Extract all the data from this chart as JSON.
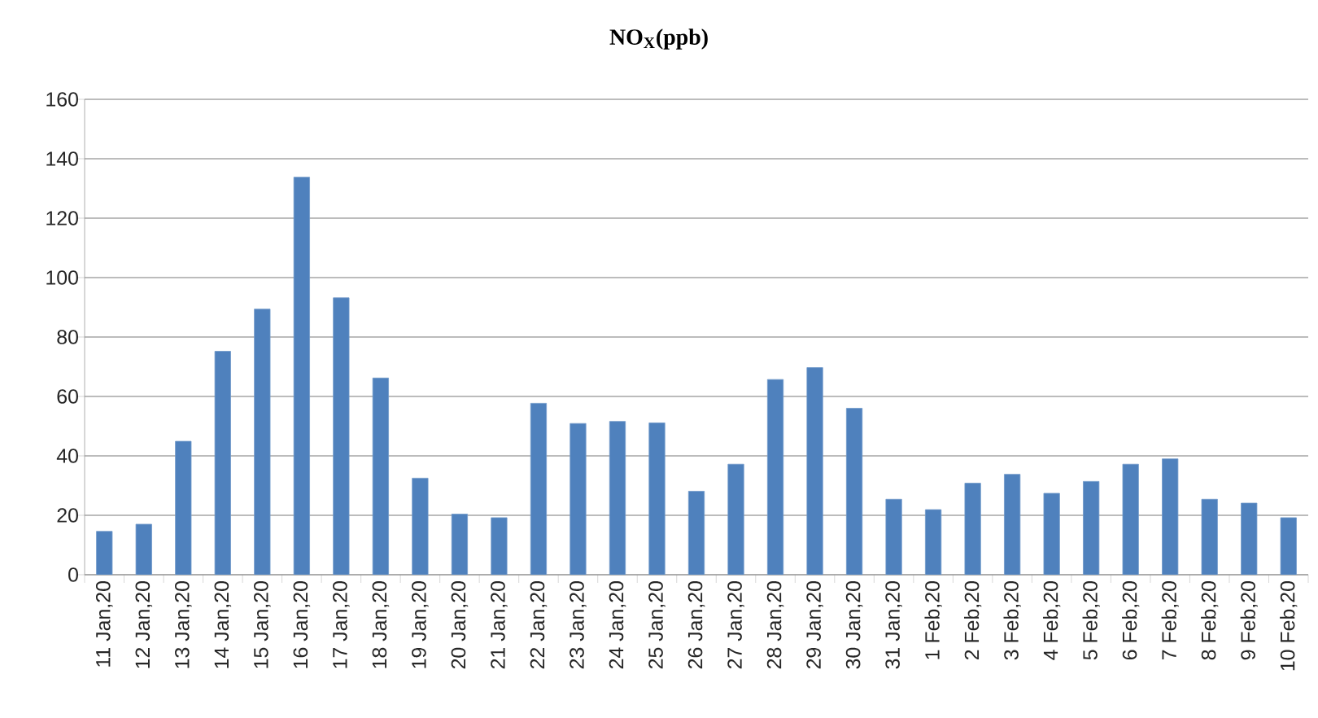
{
  "chart_data": {
    "type": "bar",
    "title": "NO$_{X}$(ppb)",
    "categories": [
      "11 Jan,20",
      "12 Jan,20",
      "13 Jan,20",
      "14 Jan,20",
      "15 Jan,20",
      "16 Jan,20",
      "17 Jan,20",
      "18 Jan,20",
      "19 Jan,20",
      "20 Jan,20",
      "21 Jan,20",
      "22 Jan,20",
      "23 Jan,20",
      "24 Jan,20",
      "25 Jan,20",
      "26 Jan,20",
      "27 Jan,20",
      "28 Jan,20",
      "29 Jan,20",
      "30 Jan,20",
      "31 Jan,20",
      "1 Feb,20",
      "2 Feb,20",
      "3 Feb,20",
      "4 Feb,20",
      "5 Feb,20",
      "6 Feb,20",
      "7 Feb,20",
      "8 Feb,20",
      "9 Feb,20",
      "10 Feb,20"
    ],
    "values": [
      14.6,
      17,
      44.9,
      75.2,
      89.4,
      133.8,
      93.2,
      66.2,
      32.5,
      20.4,
      19.2,
      57.7,
      50.9,
      51.6,
      51.1,
      28.1,
      37.2,
      65.7,
      69.7,
      56,
      25.4,
      21.9,
      30.8,
      33.8,
      27.4,
      31.4,
      37.2,
      39,
      25.4,
      24.1,
      19.2
    ],
    "color": "#4f81bd",
    "ylim": [
      0,
      160
    ],
    "yticks": [
      0,
      20,
      40,
      60,
      80,
      100,
      120,
      140,
      160
    ],
    "grid": "y"
  }
}
